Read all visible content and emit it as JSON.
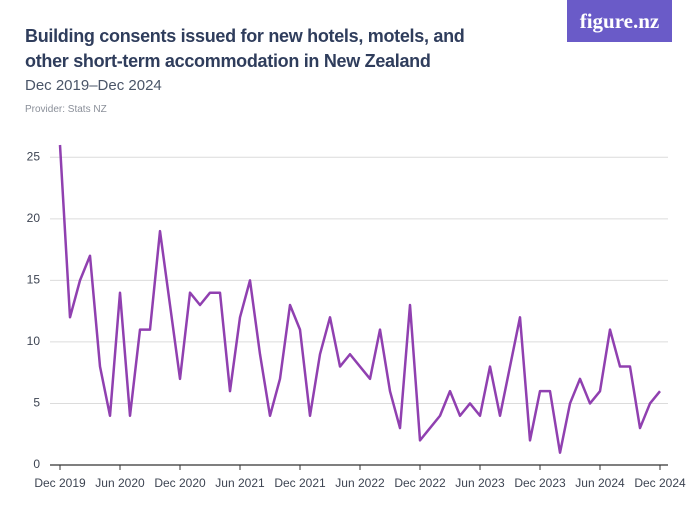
{
  "chart_data": {
    "type": "line",
    "title": "Building consents issued for new hotels, motels, and other short-term accommodation in New Zealand",
    "subtitle": "Dec 2019–Dec 2024",
    "provider": "Provider: Stats NZ",
    "logo": "figure.nz",
    "color": "#9040b0",
    "categories": [
      "Dec 2019",
      null,
      null,
      null,
      null,
      null,
      "Jun 2020",
      null,
      null,
      null,
      null,
      null,
      "Dec 2020",
      null,
      null,
      null,
      null,
      null,
      "Jun 2021",
      null,
      null,
      null,
      null,
      null,
      "Dec 2021",
      null,
      null,
      null,
      null,
      null,
      "Jun 2022",
      null,
      null,
      null,
      null,
      null,
      "Dec 2022",
      null,
      null,
      null,
      null,
      null,
      "Jun 2023",
      null,
      null,
      null,
      null,
      null,
      "Dec 2023",
      null,
      null,
      null,
      null,
      null,
      "Jun 2024",
      null,
      null,
      null,
      null,
      null,
      "Dec 2024"
    ],
    "values": [
      26,
      12,
      15,
      17,
      8,
      4,
      14,
      4,
      11,
      11,
      19,
      13,
      7,
      14,
      13,
      14,
      14,
      6,
      12,
      15,
      9,
      4,
      7,
      13,
      11,
      4,
      9,
      12,
      8,
      9,
      8,
      7,
      11,
      6,
      3,
      13,
      2,
      3,
      4,
      6,
      4,
      5,
      4,
      8,
      4,
      8,
      12,
      2,
      6,
      6,
      1,
      5,
      7,
      5,
      6,
      11,
      8,
      8,
      3,
      5,
      6
    ],
    "ylim": [
      0,
      26
    ],
    "yticks": [
      0,
      5,
      10,
      15,
      20,
      25
    ],
    "grid": true
  }
}
